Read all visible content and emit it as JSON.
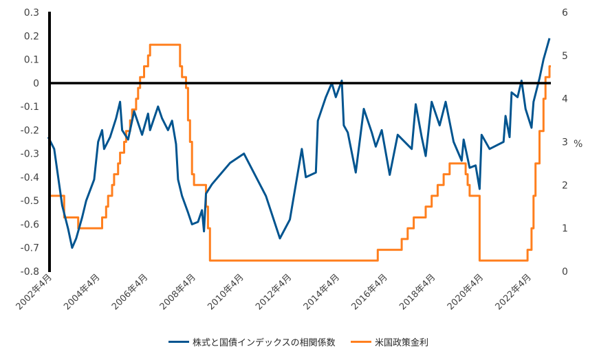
{
  "chart_data": {
    "type": "line",
    "title": "",
    "grid": false,
    "legend_placement": "bottom",
    "x_ticks": [
      "2002年4月",
      "2004年4月",
      "2006年4月",
      "2008年4月",
      "2010年4月",
      "2012年4月",
      "2014年4月",
      "2016年4月",
      "2018年4月",
      "2020年4月",
      "2022年4月"
    ],
    "y_left": {
      "lim": [
        -0.8,
        0.3
      ],
      "ticks": [
        "0.3",
        "0.2",
        "0.1",
        "0",
        "-0.1",
        "-0.2",
        "-0.3",
        "-0.4",
        "-0.5",
        "-0.6",
        "-0.7",
        "-0.8"
      ]
    },
    "y_right": {
      "lim": [
        0,
        6
      ],
      "ticks": [
        "6",
        "5",
        "4",
        "3",
        "2",
        "1",
        "0"
      ],
      "label": "%"
    },
    "series": [
      {
        "name": "株式と国債インデックスの相関係数",
        "axis": "left",
        "color": "#00548F",
        "style": "line",
        "points": [
          [
            "2002-03",
            -0.23
          ],
          [
            "2002-06",
            -0.28
          ],
          [
            "2002-08",
            -0.4
          ],
          [
            "2002-10",
            -0.52
          ],
          [
            "2003-01",
            -0.62
          ],
          [
            "2003-03",
            -0.7
          ],
          [
            "2003-05",
            -0.66
          ],
          [
            "2003-08",
            -0.57
          ],
          [
            "2003-10",
            -0.5
          ],
          [
            "2004-02",
            -0.41
          ],
          [
            "2004-04",
            -0.25
          ],
          [
            "2004-06",
            -0.2
          ],
          [
            "2004-07",
            -0.28
          ],
          [
            "2004-10",
            -0.23
          ],
          [
            "2005-01",
            -0.15
          ],
          [
            "2005-03",
            -0.08
          ],
          [
            "2005-04",
            -0.2
          ],
          [
            "2005-07",
            -0.24
          ],
          [
            "2005-10",
            -0.12
          ],
          [
            "2006-02",
            -0.22
          ],
          [
            "2006-05",
            -0.13
          ],
          [
            "2006-06",
            -0.2
          ],
          [
            "2006-10",
            -0.1
          ],
          [
            "2006-12",
            -0.15
          ],
          [
            "2007-03",
            -0.2
          ],
          [
            "2007-05",
            -0.16
          ],
          [
            "2007-07",
            -0.26
          ],
          [
            "2007-08",
            -0.41
          ],
          [
            "2007-10",
            -0.48
          ],
          [
            "2008-01",
            -0.55
          ],
          [
            "2008-03",
            -0.6
          ],
          [
            "2008-06",
            -0.59
          ],
          [
            "2008-08",
            -0.54
          ],
          [
            "2008-09",
            -0.63
          ],
          [
            "2008-10",
            -0.47
          ],
          [
            "2009-01",
            -0.43
          ],
          [
            "2009-03",
            -0.41
          ],
          [
            "2009-10",
            -0.34
          ],
          [
            "2010-05",
            -0.3
          ],
          [
            "2011-04",
            -0.48
          ],
          [
            "2011-11",
            -0.66
          ],
          [
            "2012-04",
            -0.58
          ],
          [
            "2012-10",
            -0.28
          ],
          [
            "2012-12",
            -0.4
          ],
          [
            "2013-05",
            -0.38
          ],
          [
            "2013-06",
            -0.16
          ],
          [
            "2013-10",
            -0.06
          ],
          [
            "2014-01",
            0.0
          ],
          [
            "2014-03",
            -0.06
          ],
          [
            "2014-06",
            0.01
          ],
          [
            "2014-07",
            -0.18
          ],
          [
            "2014-09",
            -0.21
          ],
          [
            "2015-01",
            -0.38
          ],
          [
            "2015-05",
            -0.11
          ],
          [
            "2015-09",
            -0.21
          ],
          [
            "2015-11",
            -0.27
          ],
          [
            "2016-02",
            -0.2
          ],
          [
            "2016-06",
            -0.39
          ],
          [
            "2016-10",
            -0.22
          ],
          [
            "2017-05",
            -0.28
          ],
          [
            "2017-07",
            -0.09
          ],
          [
            "2017-10",
            -0.23
          ],
          [
            "2017-12",
            -0.31
          ],
          [
            "2018-03",
            -0.08
          ],
          [
            "2018-07",
            -0.18
          ],
          [
            "2018-10",
            -0.08
          ],
          [
            "2019-02",
            -0.25
          ],
          [
            "2019-06",
            -0.33
          ],
          [
            "2019-07",
            -0.24
          ],
          [
            "2019-10",
            -0.36
          ],
          [
            "2020-01",
            -0.35
          ],
          [
            "2020-03",
            -0.45
          ],
          [
            "2020-04",
            -0.22
          ],
          [
            "2020-08",
            -0.28
          ],
          [
            "2021-03",
            -0.25
          ],
          [
            "2021-04",
            -0.14
          ],
          [
            "2021-06",
            -0.23
          ],
          [
            "2021-07",
            -0.04
          ],
          [
            "2021-10",
            -0.06
          ],
          [
            "2021-12",
            0.01
          ],
          [
            "2022-02",
            -0.11
          ],
          [
            "2022-05",
            -0.19
          ],
          [
            "2022-06",
            -0.08
          ],
          [
            "2022-09",
            0.02
          ],
          [
            "2022-11",
            0.1
          ],
          [
            "2023-01",
            0.16
          ],
          [
            "2023-02",
            0.19
          ]
        ]
      },
      {
        "name": "米国政策金利",
        "axis": "right",
        "color": "#FF7F1E",
        "style": "step",
        "points": [
          [
            "2002-04",
            1.75
          ],
          [
            "2002-11",
            1.25
          ],
          [
            "2003-06",
            1.0
          ],
          [
            "2004-06",
            1.25
          ],
          [
            "2004-08",
            1.5
          ],
          [
            "2004-09",
            1.75
          ],
          [
            "2004-11",
            2.0
          ],
          [
            "2004-12",
            2.25
          ],
          [
            "2005-02",
            2.5
          ],
          [
            "2005-03",
            2.75
          ],
          [
            "2005-05",
            3.0
          ],
          [
            "2005-06",
            3.25
          ],
          [
            "2005-08",
            3.5
          ],
          [
            "2005-09",
            3.75
          ],
          [
            "2005-11",
            4.0
          ],
          [
            "2005-12",
            4.25
          ],
          [
            "2006-01",
            4.5
          ],
          [
            "2006-03",
            4.75
          ],
          [
            "2006-05",
            5.0
          ],
          [
            "2006-06",
            5.25
          ],
          [
            "2007-09",
            4.75
          ],
          [
            "2007-10",
            4.5
          ],
          [
            "2007-12",
            4.25
          ],
          [
            "2008-01",
            3.5
          ],
          [
            "2008-02",
            3.0
          ],
          [
            "2008-03",
            2.25
          ],
          [
            "2008-04",
            2.0
          ],
          [
            "2008-10",
            1.5
          ],
          [
            "2008-11",
            1.0
          ],
          [
            "2008-12",
            0.25
          ],
          [
            "2015-12",
            0.5
          ],
          [
            "2016-12",
            0.75
          ],
          [
            "2017-03",
            1.0
          ],
          [
            "2017-06",
            1.25
          ],
          [
            "2017-12",
            1.5
          ],
          [
            "2018-03",
            1.75
          ],
          [
            "2018-06",
            2.0
          ],
          [
            "2018-09",
            2.25
          ],
          [
            "2018-12",
            2.5
          ],
          [
            "2019-08",
            2.25
          ],
          [
            "2019-09",
            2.0
          ],
          [
            "2019-10",
            1.75
          ],
          [
            "2020-03",
            0.25
          ],
          [
            "2022-03",
            0.5
          ],
          [
            "2022-05",
            1.0
          ],
          [
            "2022-06",
            1.75
          ],
          [
            "2022-07",
            2.5
          ],
          [
            "2022-09",
            3.25
          ],
          [
            "2022-11",
            4.0
          ],
          [
            "2022-12",
            4.5
          ],
          [
            "2023-02",
            4.75
          ]
        ]
      }
    ]
  }
}
